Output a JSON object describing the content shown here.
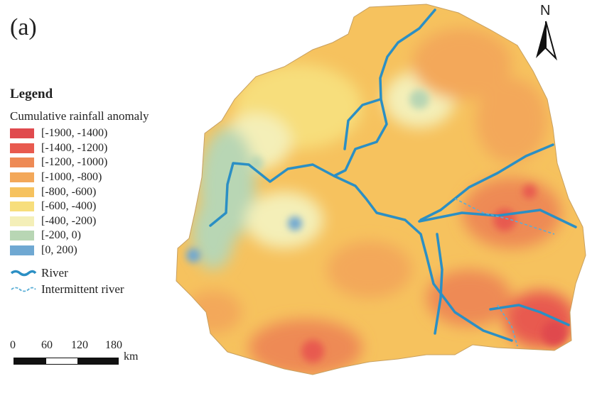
{
  "panel_label": "(a)",
  "legend": {
    "title": "Legend",
    "subtitle": "Cumulative rainfall anomaly",
    "classes": [
      {
        "label": "[-1900, -1400)",
        "color": "#e04a4e"
      },
      {
        "label": "[-1400, -1200)",
        "color": "#e85a4f"
      },
      {
        "label": "[-1200, -1000)",
        "color": "#ee8a55"
      },
      {
        "label": "[-1000, -800)",
        "color": "#f3a85a"
      },
      {
        "label": "[-800, -600)",
        "color": "#f6c25e"
      },
      {
        "label": "[-600, -400)",
        "color": "#f7de7c"
      },
      {
        "label": "[-400, -200)",
        "color": "#f4efb8"
      },
      {
        "label": "[-200, 0)",
        "color": "#b8d6b4"
      },
      {
        "label": "[0, 200)",
        "color": "#6fa8d2"
      }
    ],
    "lines": [
      {
        "label": "River",
        "color": "#2b8fc4"
      },
      {
        "label": "Intermittent river",
        "color": "#5aaed6"
      }
    ]
  },
  "scale": {
    "ticks": [
      "0",
      "60",
      "120",
      "180"
    ],
    "unit": "km"
  },
  "north_label": "N",
  "colors": {
    "river": "#2b8fc4",
    "map_base": "#f6c25e"
  }
}
